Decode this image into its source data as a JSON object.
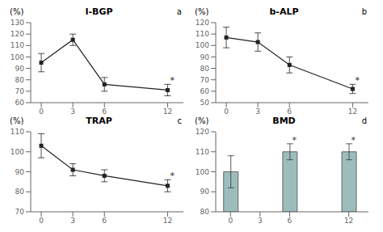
{
  "chart_data": [
    {
      "type": "line",
      "title": "I-BGP",
      "label": "a",
      "y_label": "(%)",
      "x": [
        0,
        3,
        6,
        12
      ],
      "values": [
        95,
        115,
        76,
        71
      ],
      "errors": [
        8,
        5,
        6,
        5
      ],
      "annotations": [
        {
          "x": 12,
          "text": "*"
        }
      ],
      "xlim": [
        -1,
        13.5
      ],
      "ylim": [
        60,
        130
      ],
      "xticks": [
        0,
        3,
        6,
        12
      ],
      "yticks": [
        60,
        70,
        80,
        90,
        100,
        110,
        120,
        130
      ],
      "color": "#222222",
      "marker": "square",
      "grid": false
    },
    {
      "type": "line",
      "title": "b-ALP",
      "label": "b",
      "y_label": "(%)",
      "x": [
        0,
        3,
        6,
        12
      ],
      "values": [
        107,
        103,
        83,
        62
      ],
      "errors": [
        9,
        8,
        7,
        4
      ],
      "annotations": [
        {
          "x": 12,
          "text": "*"
        }
      ],
      "xlim": [
        -1,
        13.5
      ],
      "ylim": [
        50,
        120
      ],
      "xticks": [
        0,
        3,
        6,
        12
      ],
      "yticks": [
        50,
        60,
        70,
        80,
        90,
        100,
        110,
        120
      ],
      "color": "#222222",
      "marker": "square",
      "grid": false
    },
    {
      "type": "line",
      "title": "TRAP",
      "label": "c",
      "y_label": "(%)",
      "x": [
        0,
        3,
        6,
        12
      ],
      "values": [
        103,
        91,
        88,
        83
      ],
      "errors": [
        6,
        3,
        3,
        3
      ],
      "annotations": [
        {
          "x": 12,
          "text": "*"
        }
      ],
      "xlim": [
        -1,
        13.5
      ],
      "ylim": [
        70,
        110
      ],
      "xticks": [
        0,
        3,
        6,
        12
      ],
      "yticks": [
        70,
        80,
        90,
        100,
        110
      ],
      "color": "#222222",
      "marker": "square",
      "grid": false
    },
    {
      "type": "bar",
      "title": "BMD",
      "label": "d",
      "y_label": "(%)",
      "x": [
        0,
        6,
        12
      ],
      "values": [
        100,
        110,
        110
      ],
      "errors": [
        8,
        4,
        4
      ],
      "annotations": [
        {
          "x": 6,
          "text": "*"
        },
        {
          "x": 12,
          "text": "*"
        }
      ],
      "xlim": [
        -1.5,
        14
      ],
      "ylim": [
        80,
        120
      ],
      "xticks": [
        0,
        3,
        6,
        12
      ],
      "yticks": [
        80,
        90,
        100,
        110,
        120
      ],
      "color": "#9dbdbd",
      "grid": false
    }
  ]
}
